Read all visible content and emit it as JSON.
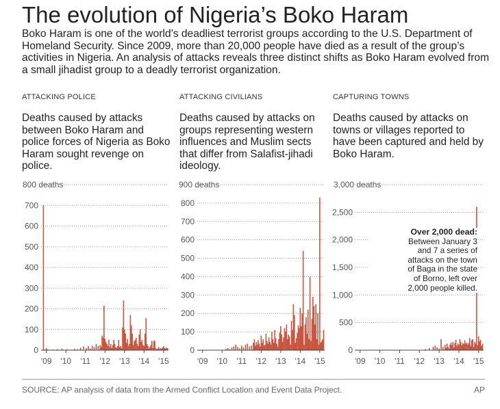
{
  "header": {
    "title": "The evolution of Nigeria’s Boko Haram",
    "intro": "Boko Haram is one of the world’s deadliest terrorist groups according to the U.S. Department of Homeland Security. Since 2009, more than 20,000 people have died as a result of the group’s activities in Nigeria. An analysis of attacks reveals three distinct shifts as Boko Haram evolved from a small jihadist group to a deadly terrorist organization."
  },
  "panels": [
    {
      "kicker": "ATTACKING POLICE",
      "description": "Deaths caused by attacks between Boko Haram and police forces of Nigeria as Boko Haram sought revenge on police.",
      "top_label": "800 deaths"
    },
    {
      "kicker": "ATTACKING CIVILIANS",
      "description": "Deaths caused by attacks on groups representing western influences and Muslim sects that differ from Salafist-jihadi ideology.",
      "top_label": "900 deaths"
    },
    {
      "kicker": "CAPTURING TOWNS",
      "description": "Deaths caused by attacks on towns or villages reported to have been captured and held by Boko Haram.",
      "top_label": "3,000 deaths",
      "annotation": {
        "heading": "Over 2,000 dead:",
        "lines": [
          "Between January 3",
          "and 7 a series of",
          "attacks on the town",
          "of Baga in the state",
          "of Borno, left over",
          "2,000 people killed."
        ]
      }
    }
  ],
  "chart_data": [
    {
      "type": "bar",
      "title": "Attacking police",
      "ylabel": "deaths",
      "ylim": [
        0,
        800
      ],
      "yticks": [
        0,
        100,
        200,
        300,
        400,
        500,
        600,
        700
      ],
      "ytick_labels": [
        "0",
        "100",
        "200",
        "300",
        "400",
        "500",
        "600",
        "700"
      ],
      "xticks": [
        {
          "label": "'09",
          "x": 0.7
        },
        {
          "label": "'10",
          "x": 1.7
        },
        {
          "label": "'11",
          "x": 2.7
        },
        {
          "label": "'12",
          "x": 3.7
        },
        {
          "label": "'13",
          "x": 4.7
        },
        {
          "label": "'14",
          "x": 5.7
        },
        {
          "label": "'15",
          "x": 6.7
        }
      ],
      "xlim": [
        0.5,
        6.95
      ],
      "bar_color": "#c8553d",
      "x": [
        0.55,
        0.6,
        0.65,
        0.7,
        0.75,
        0.85,
        1.05,
        1.25,
        1.5,
        1.75,
        2.0,
        2.15,
        2.3,
        2.45,
        2.6,
        2.75,
        2.85,
        2.95,
        3.05,
        3.15,
        3.25,
        3.35,
        3.45,
        3.5,
        3.55,
        3.6,
        3.65,
        3.7,
        3.75,
        3.8,
        3.85,
        3.9,
        3.95,
        4.0,
        4.05,
        4.1,
        4.15,
        4.2,
        4.25,
        4.3,
        4.35,
        4.4,
        4.45,
        4.5,
        4.55,
        4.6,
        4.65,
        4.7,
        4.75,
        4.8,
        4.85,
        4.9,
        4.95,
        5.0,
        5.05,
        5.1,
        5.15,
        5.2,
        5.25,
        5.3,
        5.35,
        5.4,
        5.45,
        5.5,
        5.55,
        5.6,
        5.65,
        5.7,
        5.75,
        5.8,
        5.85,
        5.9,
        5.95,
        6.0,
        6.05,
        6.1,
        6.15,
        6.2,
        6.25,
        6.3,
        6.35,
        6.4,
        6.45,
        6.5,
        6.55,
        6.6,
        6.65,
        6.7,
        6.75,
        6.8,
        6.85,
        6.9
      ],
      "values": [
        700,
        0,
        0,
        10,
        0,
        0,
        3,
        5,
        8,
        5,
        3,
        8,
        5,
        12,
        18,
        10,
        20,
        8,
        22,
        15,
        30,
        20,
        25,
        15,
        70,
        60,
        215,
        55,
        40,
        30,
        20,
        50,
        15,
        30,
        10,
        25,
        50,
        30,
        15,
        10,
        20,
        50,
        15,
        20,
        10,
        110,
        240,
        100,
        80,
        35,
        55,
        20,
        30,
        170,
        120,
        80,
        25,
        45,
        50,
        60,
        30,
        20,
        75,
        100,
        40,
        50,
        25,
        20,
        80,
        155,
        30,
        20,
        8,
        15,
        25,
        45,
        10,
        45,
        45,
        10,
        5,
        8,
        15,
        5,
        10,
        8,
        12,
        20,
        10,
        8,
        12,
        10
      ]
    },
    {
      "type": "bar",
      "title": "Attacking civilians",
      "ylabel": "deaths",
      "ylim": [
        0,
        900
      ],
      "yticks": [
        0,
        100,
        200,
        300,
        400,
        500,
        600,
        700,
        800
      ],
      "ytick_labels": [
        "0",
        "100",
        "200",
        "300",
        "400",
        "500",
        "600",
        "700",
        "800"
      ],
      "xticks": [
        {
          "label": "'09",
          "x": 0.7
        },
        {
          "label": "'10",
          "x": 1.7
        },
        {
          "label": "'11",
          "x": 2.7
        },
        {
          "label": "'12",
          "x": 3.7
        },
        {
          "label": "'13",
          "x": 4.7
        },
        {
          "label": "'14",
          "x": 5.7
        },
        {
          "label": "'15",
          "x": 6.7
        }
      ],
      "xlim": [
        0.5,
        6.95
      ],
      "bar_color": "#c8553d",
      "x": [
        1.9,
        2.0,
        2.1,
        2.2,
        2.3,
        2.4,
        2.5,
        2.6,
        2.7,
        2.8,
        2.9,
        3.0,
        3.1,
        3.2,
        3.3,
        3.35,
        3.4,
        3.45,
        3.5,
        3.55,
        3.6,
        3.65,
        3.7,
        3.75,
        3.8,
        3.85,
        3.9,
        3.95,
        4.0,
        4.05,
        4.1,
        4.15,
        4.2,
        4.25,
        4.3,
        4.35,
        4.4,
        4.45,
        4.5,
        4.55,
        4.6,
        4.65,
        4.7,
        4.75,
        4.8,
        4.85,
        4.9,
        4.95,
        5.0,
        5.05,
        5.1,
        5.15,
        5.2,
        5.25,
        5.3,
        5.35,
        5.4,
        5.45,
        5.5,
        5.55,
        5.6,
        5.65,
        5.7,
        5.75,
        5.8,
        5.85,
        5.9,
        5.95,
        6.0,
        6.05,
        6.1,
        6.15,
        6.2,
        6.25,
        6.3,
        6.35,
        6.4,
        6.45,
        6.5,
        6.55,
        6.6,
        6.65,
        6.7,
        6.75,
        6.8,
        6.85,
        6.9
      ],
      "values": [
        8,
        12,
        5,
        15,
        20,
        30,
        18,
        10,
        25,
        15,
        30,
        35,
        20,
        25,
        40,
        60,
        25,
        45,
        30,
        55,
        35,
        20,
        80,
        40,
        60,
        25,
        30,
        90,
        50,
        35,
        70,
        45,
        30,
        100,
        60,
        40,
        110,
        65,
        35,
        20,
        60,
        95,
        130,
        85,
        45,
        70,
        120,
        100,
        140,
        60,
        85,
        75,
        30,
        160,
        110,
        250,
        190,
        40,
        65,
        95,
        135,
        120,
        230,
        130,
        200,
        540,
        30,
        140,
        180,
        90,
        220,
        60,
        400,
        50,
        170,
        290,
        240,
        140,
        250,
        60,
        200,
        30,
        830,
        40,
        50,
        60,
        110
      ]
    },
    {
      "type": "bar",
      "title": "Capturing towns",
      "ylabel": "deaths",
      "ylim": [
        0,
        3000
      ],
      "yticks": [
        0,
        500,
        1000,
        1500,
        2000,
        2500
      ],
      "ytick_labels": [
        "0",
        "500",
        "1,000",
        "1,500",
        "2,000",
        "2,500"
      ],
      "xticks": [
        {
          "label": "'09",
          "x": 0.7
        },
        {
          "label": "'10",
          "x": 1.7
        },
        {
          "label": "'11",
          "x": 2.7
        },
        {
          "label": "'12",
          "x": 3.7
        },
        {
          "label": "'13",
          "x": 4.7
        },
        {
          "label": "'14",
          "x": 5.7
        },
        {
          "label": "'15",
          "x": 6.7
        }
      ],
      "xlim": [
        0.5,
        6.95
      ],
      "bar_color": "#c8553d",
      "x": [
        4.0,
        4.2,
        4.4,
        4.5,
        4.6,
        4.7,
        4.8,
        4.9,
        5.0,
        5.05,
        5.1,
        5.15,
        5.2,
        5.25,
        5.3,
        5.35,
        5.4,
        5.45,
        5.5,
        5.55,
        5.6,
        5.65,
        5.7,
        5.75,
        5.8,
        5.85,
        5.9,
        5.95,
        6.0,
        6.05,
        6.1,
        6.15,
        6.2,
        6.25,
        6.3,
        6.35,
        6.4,
        6.45,
        6.5,
        6.55,
        6.6,
        6.65,
        6.7,
        6.75,
        6.8,
        6.85,
        6.9
      ],
      "values": [
        20,
        40,
        60,
        80,
        50,
        30,
        200,
        60,
        100,
        40,
        120,
        60,
        30,
        100,
        140,
        90,
        150,
        50,
        130,
        190,
        80,
        120,
        100,
        200,
        150,
        90,
        130,
        110,
        180,
        120,
        140,
        100,
        130,
        220,
        80,
        180,
        200,
        60,
        150,
        120,
        2600,
        90,
        250,
        160,
        190,
        80,
        120
      ]
    }
  ],
  "footer": {
    "source": "SOURCE: AP analysis of data from the Armed Conflict Location and Event Data Project.",
    "credit": "AP"
  },
  "colors": {
    "bar": "#c8553d",
    "text": "#222222",
    "muted": "#666666",
    "grid": "#9a9a9a"
  }
}
